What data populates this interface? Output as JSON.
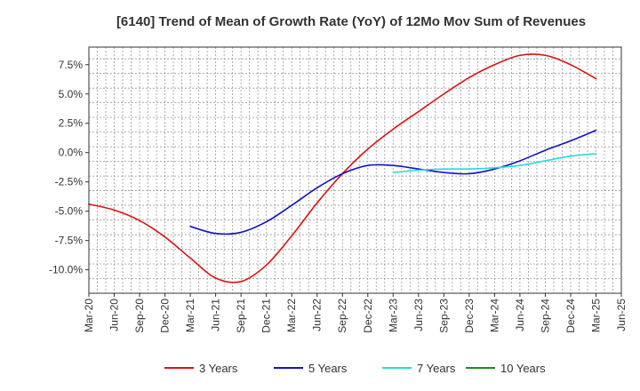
{
  "chart_data": {
    "type": "line",
    "title": "[6140]  Trend of Mean of Growth Rate (YoY) of 12Mo Mov Sum of Revenues",
    "xlabel": "",
    "ylabel": "",
    "x_categories": [
      "Mar-20",
      "Jun-20",
      "Sep-20",
      "Dec-20",
      "Mar-21",
      "Jun-21",
      "Sep-21",
      "Dec-21",
      "Mar-22",
      "Jun-22",
      "Sep-22",
      "Dec-22",
      "Mar-23",
      "Jun-23",
      "Sep-23",
      "Dec-23",
      "Mar-24",
      "Jun-24",
      "Sep-24",
      "Dec-24",
      "Mar-25",
      "Jun-25"
    ],
    "y_ticks": [
      7.5,
      5.0,
      2.5,
      0.0,
      -2.5,
      -5.0,
      -7.5,
      -10.0
    ],
    "y_tick_labels": [
      "7.5%",
      "5.0%",
      "2.5%",
      "0.0%",
      "-2.5%",
      "-5.0%",
      "-7.5%",
      "-10.0%"
    ],
    "ylim": [
      -12.0,
      9.0
    ],
    "grid": true,
    "legend_position": "bottom",
    "series": [
      {
        "name": "3 Years",
        "color": "#dd1111",
        "start_index": 0,
        "values": [
          -4.4,
          -4.9,
          -5.8,
          -7.2,
          -9.0,
          -10.7,
          -11.0,
          -9.6,
          -7.1,
          -4.3,
          -1.8,
          0.3,
          2.0,
          3.5,
          5.0,
          6.4,
          7.5,
          8.3,
          8.3,
          7.5,
          6.3
        ]
      },
      {
        "name": "5 Years",
        "color": "#1111cc",
        "start_index": 4,
        "values": [
          -6.3,
          -6.9,
          -6.8,
          -5.9,
          -4.5,
          -3.0,
          -1.8,
          -1.1,
          -1.1,
          -1.4,
          -1.7,
          -1.8,
          -1.4,
          -0.7,
          0.2,
          1.0,
          1.9
        ]
      },
      {
        "name": "7 Years",
        "color": "#22dddd",
        "start_index": 12,
        "values": [
          -1.7,
          -1.5,
          -1.4,
          -1.4,
          -1.3,
          -1.1,
          -0.7,
          -0.3,
          -0.1
        ]
      },
      {
        "name": "10 Years",
        "color": "#228822",
        "start_index": 0,
        "values": []
      }
    ]
  }
}
